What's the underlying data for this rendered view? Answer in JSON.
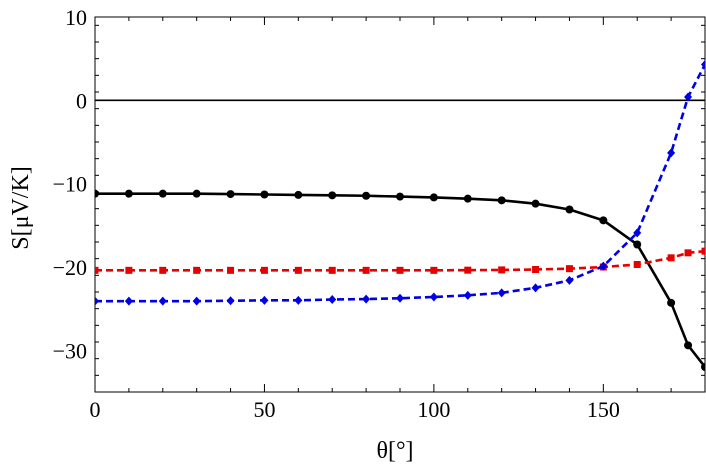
{
  "chart_data": {
    "type": "line",
    "xlabel": "θ[°]",
    "ylabel": "S[μV/K]",
    "xlim": [
      0,
      180
    ],
    "ylim": [
      -35,
      10
    ],
    "xticks": [
      0,
      50,
      100,
      150
    ],
    "yticks": [
      -30,
      -20,
      -10,
      0,
      10
    ],
    "grid": false,
    "legend": "none",
    "reference_line": {
      "y": 0,
      "color": "#000000"
    },
    "series": [
      {
        "color": "#000000",
        "style": "solid",
        "marker": "circle",
        "x": [
          0,
          10,
          20,
          30,
          40,
          50,
          60,
          70,
          80,
          90,
          100,
          110,
          120,
          130,
          140,
          150,
          160,
          170,
          175,
          180
        ],
        "y": [
          -11.2,
          -11.2,
          -11.2,
          -11.2,
          -11.25,
          -11.3,
          -11.35,
          -11.4,
          -11.45,
          -11.55,
          -11.65,
          -11.8,
          -12.0,
          -12.4,
          -13.1,
          -14.4,
          -17.3,
          -24.3,
          -29.4,
          -32.0
        ]
      },
      {
        "color": "#e60000",
        "style": "dashed",
        "marker": "square",
        "x": [
          0,
          10,
          20,
          30,
          40,
          50,
          60,
          70,
          80,
          90,
          100,
          110,
          120,
          130,
          140,
          150,
          160,
          170,
          175,
          180
        ],
        "y": [
          -20.4,
          -20.4,
          -20.4,
          -20.4,
          -20.4,
          -20.4,
          -20.4,
          -20.4,
          -20.4,
          -20.4,
          -20.4,
          -20.38,
          -20.35,
          -20.3,
          -20.2,
          -20.0,
          -19.7,
          -18.9,
          -18.3,
          -18.1
        ]
      },
      {
        "color": "#0000e6",
        "style": "dashed",
        "marker": "diamond",
        "x": [
          0,
          10,
          20,
          30,
          40,
          50,
          60,
          70,
          80,
          90,
          100,
          110,
          120,
          130,
          140,
          150,
          160,
          170,
          175,
          180
        ],
        "y": [
          -24.1,
          -24.1,
          -24.1,
          -24.1,
          -24.05,
          -24.0,
          -24.0,
          -23.9,
          -23.85,
          -23.75,
          -23.6,
          -23.4,
          -23.1,
          -22.5,
          -21.6,
          -19.9,
          -15.9,
          -6.3,
          0.4,
          4.3
        ]
      }
    ]
  }
}
